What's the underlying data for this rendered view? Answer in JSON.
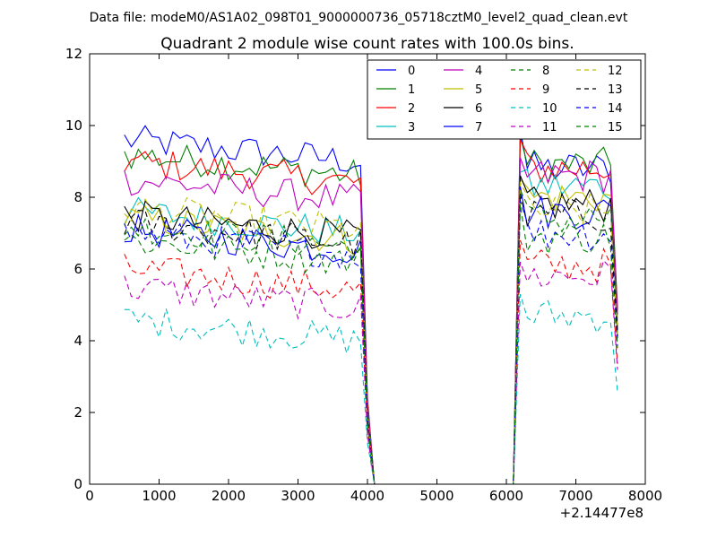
{
  "header": {
    "data_file": "Data file: modeM0/AS1A02_098T01_9000000736_05718cztM0_level2_quad_clean.evt"
  },
  "chart_data": {
    "type": "line",
    "title": "Quadrant 2 module wise count rates with 100.0s bins.",
    "x_offset_label": "+2.14477e8",
    "xlim": [
      0,
      8000
    ],
    "ylim": [
      0,
      12
    ],
    "x_ticks": [
      0,
      1000,
      2000,
      3000,
      4000,
      5000,
      6000,
      7000,
      8000
    ],
    "y_ticks": [
      0,
      2,
      4,
      6,
      8,
      10,
      12
    ],
    "x_tick_labels": [
      "0",
      "1000",
      "2000",
      "3000",
      "4000",
      "5000",
      "6000",
      "7000",
      "8000"
    ],
    "y_tick_labels": [
      "0",
      "2",
      "4",
      "6",
      "8",
      "10",
      "12"
    ],
    "legend_position": "top-right",
    "series": [
      {
        "name": "0",
        "color": "#0000ff",
        "dash": "solid",
        "level1": 9.6,
        "level2": 8.8,
        "peak": 9.9
      },
      {
        "name": "1",
        "color": "#008000",
        "dash": "solid",
        "level1": 9.2,
        "level2": 8.9,
        "peak": 9.7
      },
      {
        "name": "2",
        "color": "#ff0000",
        "dash": "solid",
        "level1": 9.0,
        "level2": 8.8,
        "peak": 9.6
      },
      {
        "name": "3",
        "color": "#00bfbf",
        "dash": "solid",
        "level1": 7.6,
        "level2": 8.3,
        "peak": 8.7
      },
      {
        "name": "4",
        "color": "#bf00bf",
        "dash": "solid",
        "level1": 8.5,
        "level2": 8.6,
        "peak": 9.1
      },
      {
        "name": "5",
        "color": "#bfbf00",
        "dash": "solid",
        "level1": 7.4,
        "level2": 8.0,
        "peak": 8.5
      },
      {
        "name": "6",
        "color": "#000000",
        "dash": "solid",
        "level1": 7.5,
        "level2": 7.8,
        "peak": 8.6
      },
      {
        "name": "7",
        "color": "#0000ff",
        "dash": "solid",
        "level1": 7.1,
        "level2": 7.6,
        "peak": 8.3
      },
      {
        "name": "8",
        "color": "#008000",
        "dash": "dashed",
        "level1": 7.2,
        "level2": 7.4,
        "peak": 8.2
      },
      {
        "name": "9",
        "color": "#ff0000",
        "dash": "dashed",
        "level1": 6.0,
        "level2": 6.1,
        "peak": 6.8
      },
      {
        "name": "10",
        "color": "#00bfbf",
        "dash": "dashed",
        "level1": 4.6,
        "level2": 4.7,
        "peak": 5.3
      },
      {
        "name": "11",
        "color": "#bf00bf",
        "dash": "dashed",
        "level1": 5.5,
        "level2": 5.8,
        "peak": 6.2
      },
      {
        "name": "12",
        "color": "#bfbf00",
        "dash": "dashed",
        "level1": 7.7,
        "level2": 7.6,
        "peak": 8.4
      },
      {
        "name": "13",
        "color": "#000000",
        "dash": "dashed",
        "level1": 7.3,
        "level2": 7.5,
        "peak": 8.1
      },
      {
        "name": "14",
        "color": "#0000ff",
        "dash": "dashed",
        "level1": 7.0,
        "level2": 7.0,
        "peak": 7.9
      },
      {
        "name": "15",
        "color": "#008000",
        "dash": "dashed",
        "level1": 6.8,
        "level2": 6.9,
        "peak": 7.8
      }
    ],
    "time_segments": {
      "seg1_start": 500,
      "seg1_end": 3900,
      "seg1_drop": 4000,
      "gap_start": 4100,
      "gap_end": 6000,
      "seg2_start": 6100,
      "seg2_first": 6200,
      "seg2_end": 7500,
      "seg2_last": 7600,
      "bin": 100
    }
  }
}
